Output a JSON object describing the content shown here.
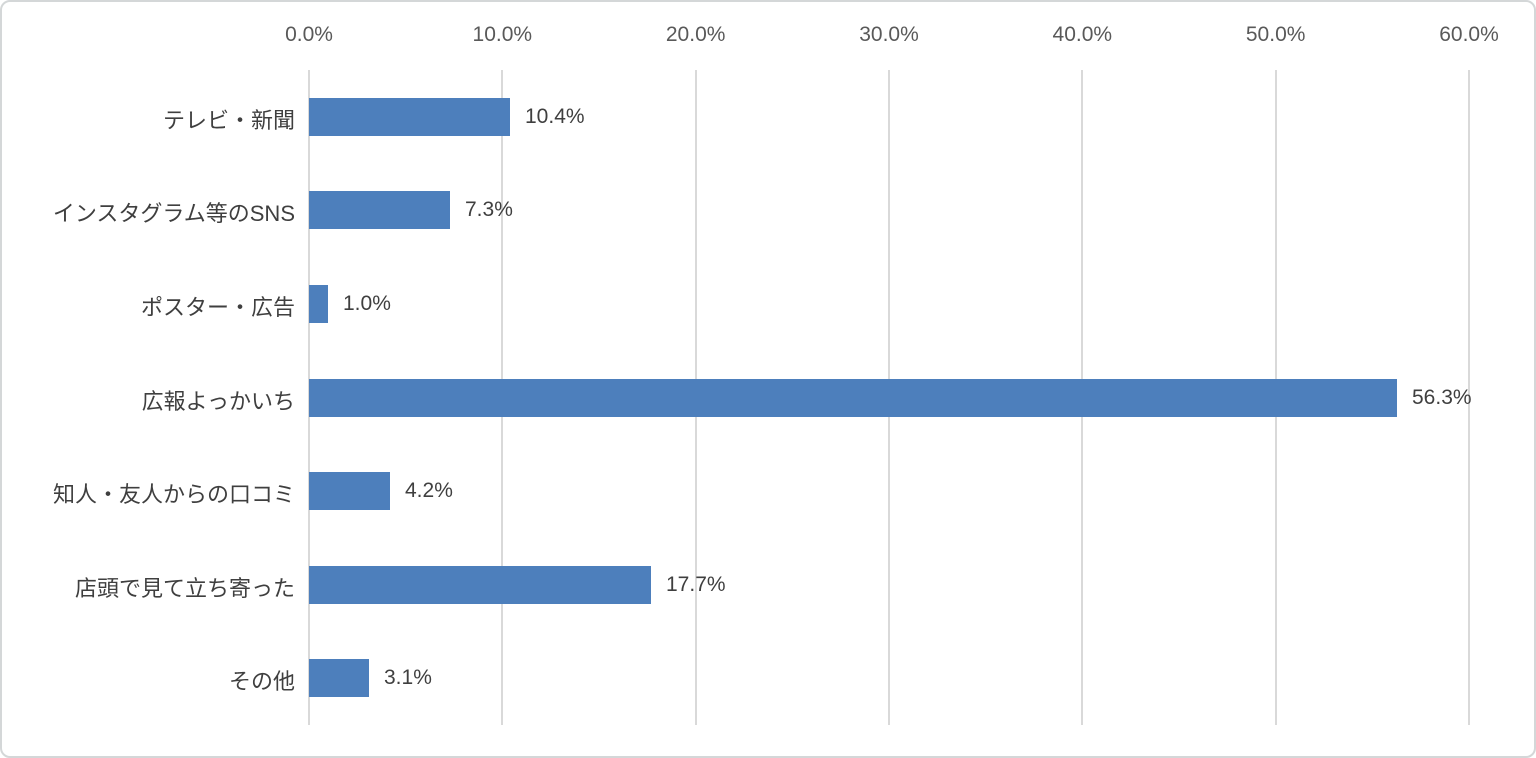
{
  "chart_data": {
    "type": "bar",
    "orientation": "horizontal",
    "title": "",
    "categories": [
      "テレビ・新聞",
      "インスタグラム等のSNS",
      "ポスター・広告",
      "広報よっかいち",
      "知人・友人からの口コミ",
      "店頭で見て立ち寄った",
      "その他"
    ],
    "values": [
      10.4,
      7.3,
      1.0,
      56.3,
      4.2,
      17.7,
      3.1
    ],
    "value_labels": [
      "10.4%",
      "7.3%",
      "1.0%",
      "56.3%",
      "4.2%",
      "17.7%",
      "3.1%"
    ],
    "x_axis": {
      "position": "top",
      "min": 0,
      "max": 60,
      "tick_step": 10,
      "tick_labels": [
        "0.0%",
        "10.0%",
        "20.0%",
        "30.0%",
        "40.0%",
        "50.0%",
        "60.0%"
      ]
    },
    "legend": "none",
    "grid": true,
    "colors": {
      "bar": "#4d7fbc",
      "gridline": "#d9d9d9",
      "tick_label": "#595959",
      "category_label": "#3f3f3f",
      "value_label": "#3f3f3f",
      "background": "#ffffff",
      "frame_border": "#d4d7d8"
    }
  }
}
